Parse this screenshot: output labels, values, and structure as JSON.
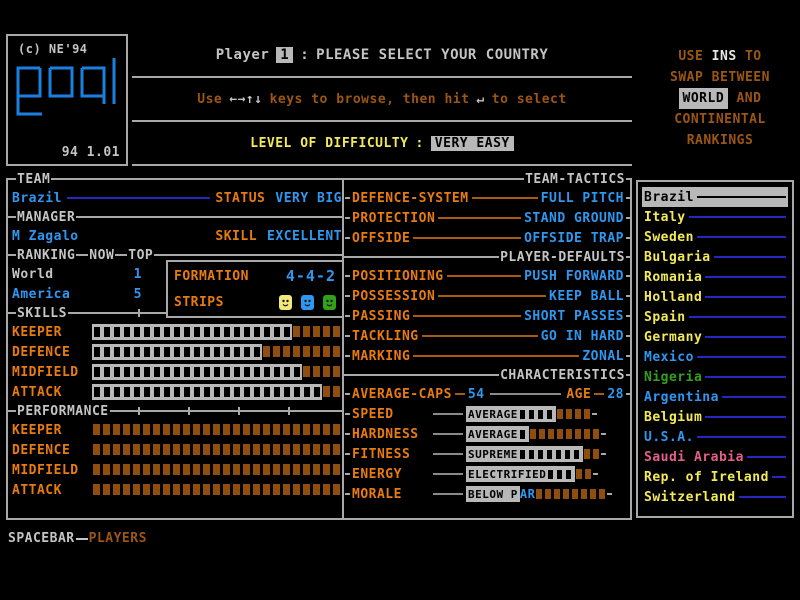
{
  "logo": {
    "copyright": "(c) NE'94",
    "title": "goal",
    "version": "94 1.01"
  },
  "header": {
    "player_label": "Player",
    "player_number": "1",
    "colon": ":",
    "prompt": "PLEASE SELECT YOUR COUNTRY",
    "browse_pre": "Use",
    "browse_arrows": "←→↑↓",
    "browse_mid": "keys to browse, then hit",
    "browse_enter": "↵",
    "browse_post": "to select",
    "difficulty_label": "LEVEL OF DIFFICULTY",
    "difficulty_sep": ":",
    "difficulty_value": "VERY EASY"
  },
  "rank_note": {
    "use": "USE",
    "ins_key": "INS",
    "to": "TO",
    "line2": "SWAP BETWEEN",
    "world": "WORLD",
    "and": "AND",
    "line4": "CONTINENTAL",
    "line5": "RANKINGS"
  },
  "team_panel": {
    "team_header": "TEAM",
    "team_name": "Brazil",
    "status_label": "STATUS",
    "status_value": "VERY BIG",
    "manager_header": "MANAGER",
    "manager_name": "M Zagalo",
    "skill_label": "SKILL",
    "skill_value": "EXCELLENT",
    "ranking_header": "RANKING",
    "now_label": "NOW",
    "top_label": "TOP",
    "ranking_rows": [
      {
        "name": "World",
        "now": "1",
        "top": "1",
        "color": "grey"
      },
      {
        "name": "America",
        "now": "5",
        "top": "5",
        "color": "blue"
      }
    ],
    "formation_label": "FORMATION",
    "formation_value": "4-4-2",
    "strips_label": "STRIPS",
    "skills_header": "SKILLS",
    "skills": [
      {
        "label": "KEEPER",
        "filled": 20,
        "empty": 5
      },
      {
        "label": "DEFENCE",
        "filled": 17,
        "empty": 8
      },
      {
        "label": "MIDFIELD",
        "filled": 21,
        "empty": 4
      },
      {
        "label": "ATTACK",
        "filled": 23,
        "empty": 2
      }
    ],
    "performance_header": "PERFORMANCE",
    "performance": [
      {
        "label": "KEEPER",
        "filled": 0,
        "empty": 25
      },
      {
        "label": "DEFENCE",
        "filled": 0,
        "empty": 25
      },
      {
        "label": "MIDFIELD",
        "filled": 0,
        "empty": 25
      },
      {
        "label": "ATTACK",
        "filled": 0,
        "empty": 25
      }
    ]
  },
  "tactics_panel": {
    "header": "TEAM-TACTICS",
    "tactics": [
      {
        "label": "DEFENCE-SYSTEM",
        "value": "FULL PITCH"
      },
      {
        "label": "PROTECTION",
        "value": "STAND GROUND"
      },
      {
        "label": "OFFSIDE",
        "value": "OFFSIDE TRAP"
      }
    ],
    "defaults_header": "PLAYER-DEFAULTS",
    "defaults": [
      {
        "label": "POSITIONING",
        "value": "PUSH FORWARD"
      },
      {
        "label": "POSSESSION",
        "value": "KEEP BALL"
      },
      {
        "label": "PASSING",
        "value": "SHORT PASSES"
      },
      {
        "label": "TACKLING",
        "value": "GO IN HARD"
      },
      {
        "label": "MARKING",
        "value": "ZONAL"
      }
    ],
    "characteristics_header": "CHARACTERISTICS",
    "caps_label": "AVERAGE-CAPS",
    "caps_value": "54",
    "age_label": "AGE",
    "age_value": "28",
    "characteristics": [
      {
        "label": "SPEED",
        "rating": "AVERAGE",
        "rating_overflow": "",
        "filled": 4,
        "empty": 4
      },
      {
        "label": "HARDNESS",
        "rating": "AVERAGE",
        "rating_overflow": "",
        "filled": 1,
        "empty": 8
      },
      {
        "label": "FITNESS",
        "rating": "SUPREME",
        "rating_overflow": "",
        "filled": 7,
        "empty": 2
      },
      {
        "label": "ENERGY",
        "rating": "ELECTRIFIED",
        "rating_overflow": "",
        "filled": 3,
        "empty": 2
      },
      {
        "label": "MORALE",
        "rating": "BELOW P",
        "rating_overflow": "AR",
        "filled": 0,
        "empty": 8
      }
    ]
  },
  "country_list": {
    "items": [
      {
        "name": "Brazil",
        "color": "selected"
      },
      {
        "name": "Italy",
        "color": "yellow"
      },
      {
        "name": "Sweden",
        "color": "yellow"
      },
      {
        "name": "Bulgaria",
        "color": "yellow"
      },
      {
        "name": "Romania",
        "color": "yellow"
      },
      {
        "name": "Holland",
        "color": "yellow"
      },
      {
        "name": "Spain",
        "color": "yellow"
      },
      {
        "name": "Germany",
        "color": "yellow"
      },
      {
        "name": "Mexico",
        "color": "blue"
      },
      {
        "name": "Nigeria",
        "color": "green"
      },
      {
        "name": "Argentina",
        "color": "blue"
      },
      {
        "name": "Belgium",
        "color": "yellow"
      },
      {
        "name": "U.S.A.",
        "color": "blue"
      },
      {
        "name": "Saudi Arabia",
        "color": "pink"
      },
      {
        "name": "Rep. of Ireland",
        "color": "yellow"
      },
      {
        "name": "Switzerland",
        "color": "yellow"
      }
    ]
  },
  "footer": {
    "key": "SPACEBAR",
    "action": "PLAYERS"
  },
  "colors": {
    "accent_orange": "#e87b10",
    "accent_blue": "#2f97ef",
    "highlight_grey": "#b8b8b8",
    "square_brown": "#8f4d0e",
    "strip_colors": [
      "#f0e87a",
      "#2f97ef",
      "#33a01c"
    ]
  }
}
